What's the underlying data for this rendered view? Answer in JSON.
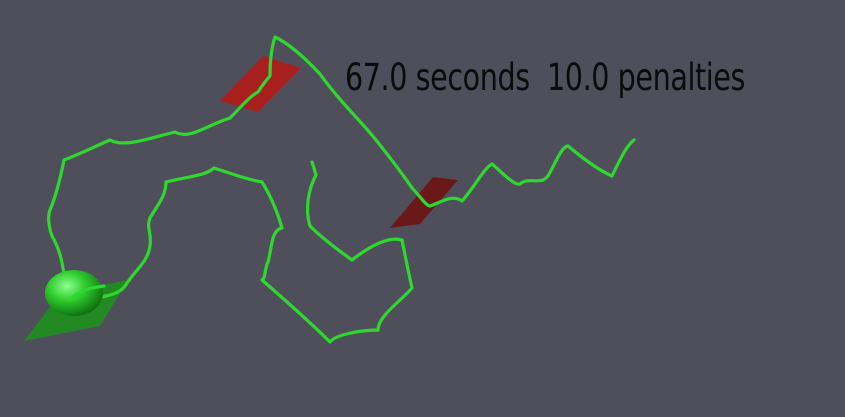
{
  "hud": {
    "time_value": "67.0",
    "time_unit": "seconds",
    "penalty_value": "10.0",
    "penalty_unit": "penalties"
  },
  "colors": {
    "background": "#4f4f5c",
    "track": "#2fd82f",
    "gate": "#a8201e",
    "gate_far": "#6b1818",
    "start_pad": "#238a23",
    "marble": "#2ecc2e",
    "hud_text": "#0b0b0b"
  },
  "scene": {
    "objects": [
      "track-line",
      "gate-near",
      "gate-far",
      "start-pad",
      "marble"
    ]
  }
}
